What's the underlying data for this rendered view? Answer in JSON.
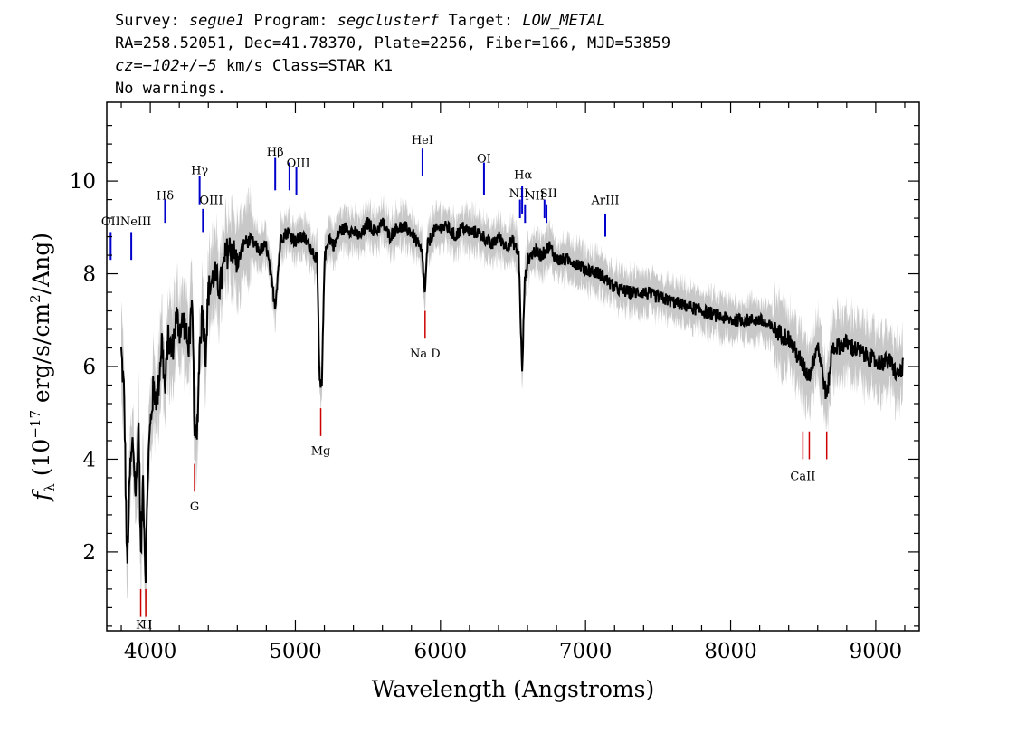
{
  "header": {
    "line1": [
      {
        "t": "Survey: ",
        "i": false
      },
      {
        "t": "segue1",
        "i": true
      },
      {
        "t": " Program: ",
        "i": false
      },
      {
        "t": "segclusterf",
        "i": true
      },
      {
        "t": " Target: ",
        "i": false
      },
      {
        "t": "LOW_METAL",
        "i": true
      }
    ],
    "line2": "RA=258.52051, Dec=41.78370, Plate=2256, Fiber=166, MJD=53859",
    "line3": [
      {
        "t": "cz=",
        "i": true
      },
      {
        "t": "−102+/−5",
        "i": true
      },
      {
        "t": " km/s Class=STAR K1",
        "i": false
      }
    ],
    "line4": "No warnings."
  },
  "colors": {
    "flux": "#000000",
    "error": "#c8c8c8",
    "emission": "#0000cc",
    "absorption": "#cc0000"
  },
  "chart_data": {
    "type": "line",
    "xlabel": "Wavelength (Angstroms)",
    "ylabel": "fλ (10⁻¹⁷ erg/s/cm²/Ang)",
    "xlim": [
      3700,
      9300
    ],
    "ylim": [
      0.3,
      11.7
    ],
    "x_ticks": [
      4000,
      5000,
      6000,
      7000,
      8000,
      9000
    ],
    "y_ticks": [
      2,
      4,
      6,
      8,
      10
    ],
    "series": [
      {
        "kind": "flux",
        "x": [
          3800,
          3820,
          3840,
          3860,
          3880,
          3900,
          3920,
          3935,
          3950,
          3968,
          3985,
          4000,
          4020,
          4050,
          4080,
          4102,
          4120,
          4150,
          4180,
          4200,
          4230,
          4260,
          4290,
          4305,
          4320,
          4340,
          4360,
          4380,
          4400,
          4440,
          4480,
          4520,
          4560,
          4600,
          4650,
          4700,
          4750,
          4800,
          4861,
          4900,
          4950,
          5000,
          5050,
          5100,
          5150,
          5167,
          5175,
          5183,
          5200,
          5230,
          5270,
          5300,
          5350,
          5400,
          5450,
          5500,
          5550,
          5600,
          5650,
          5700,
          5750,
          5800,
          5850,
          5875,
          5890,
          5896,
          5910,
          5950,
          6000,
          6050,
          6100,
          6150,
          6200,
          6250,
          6300,
          6350,
          6400,
          6450,
          6500,
          6540,
          6563,
          6580,
          6600,
          6650,
          6700,
          6750,
          6800,
          6900,
          7000,
          7100,
          7200,
          7300,
          7400,
          7500,
          7600,
          7700,
          7800,
          7900,
          8000,
          8100,
          8200,
          8300,
          8400,
          8500,
          8542,
          8600,
          8662,
          8700,
          8800,
          8900,
          9000,
          9100,
          9150,
          9190
        ],
        "y": [
          6.3,
          5.4,
          1.6,
          3.7,
          4.4,
          3.2,
          4.8,
          1.8,
          3.6,
          1.4,
          3.9,
          4.7,
          5.5,
          5.3,
          6.6,
          5.4,
          6.6,
          6.3,
          7.1,
          6.8,
          7.0,
          6.4,
          7.2,
          4.6,
          4.3,
          6.4,
          7.3,
          6.2,
          7.6,
          8.0,
          7.7,
          8.4,
          8.6,
          8.2,
          8.7,
          8.7,
          8.5,
          8.6,
          7.3,
          8.8,
          8.9,
          8.7,
          8.8,
          8.6,
          8.3,
          5.7,
          5.5,
          5.6,
          8.3,
          8.8,
          8.6,
          8.9,
          9.0,
          8.9,
          8.8,
          9.1,
          8.9,
          9.1,
          8.8,
          9.0,
          9.0,
          8.9,
          8.6,
          8.4,
          7.6,
          7.7,
          8.6,
          8.9,
          9.0,
          9.0,
          8.8,
          9.0,
          8.9,
          8.9,
          8.8,
          8.6,
          8.8,
          8.6,
          8.7,
          8.4,
          5.8,
          7.8,
          8.3,
          8.5,
          8.4,
          8.6,
          8.3,
          8.3,
          8.1,
          8.0,
          7.7,
          7.6,
          7.6,
          7.5,
          7.4,
          7.3,
          7.2,
          7.1,
          7.0,
          7.0,
          7.0,
          6.8,
          6.6,
          6.0,
          5.8,
          6.5,
          5.3,
          6.4,
          6.5,
          6.3,
          6.1,
          6.1,
          5.8,
          6.0
        ]
      }
    ],
    "emission_lines": [
      {
        "label": "OII",
        "wave": 3727
      },
      {
        "label": "NeIII",
        "wave": 3869
      },
      {
        "label": "Hδ",
        "wave": 4102
      },
      {
        "label": "Hγ",
        "wave": 4340
      },
      {
        "label": "OIII",
        "wave": 4363
      },
      {
        "label": "Hβ",
        "wave": 4861
      },
      {
        "label": "OIII",
        "wave": 4959
      },
      {
        "label": "OIII",
        "wave": 5007
      },
      {
        "label": "HeI",
        "wave": 5876
      },
      {
        "label": "OI",
        "wave": 6300
      },
      {
        "label": "NII",
        "wave": 6548
      },
      {
        "label": "Hα",
        "wave": 6563
      },
      {
        "label": "NII",
        "wave": 6583
      },
      {
        "label": "SII",
        "wave": 6717
      },
      {
        "label": "SII",
        "wave": 6731
      },
      {
        "label": "ArIII",
        "wave": 7136
      }
    ],
    "absorption_lines": [
      {
        "label": "K",
        "wave": 3934
      },
      {
        "label": "H",
        "wave": 3969
      },
      {
        "label": "G",
        "wave": 4305
      },
      {
        "label": "Mg",
        "wave": 5175
      },
      {
        "label": "Na D",
        "wave": 5894
      },
      {
        "label": "CaII",
        "wave": 8498
      },
      {
        "label": "CaII",
        "wave": 8542
      },
      {
        "label": "CaII",
        "wave": 8662
      }
    ]
  }
}
